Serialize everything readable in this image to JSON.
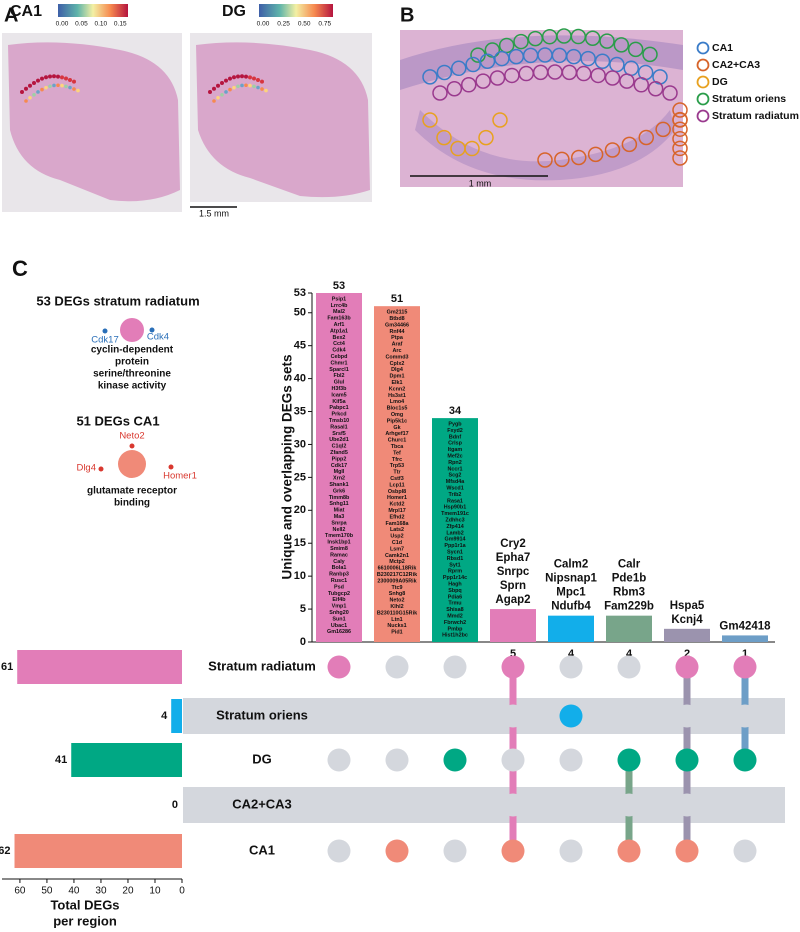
{
  "panel_a": {
    "label": "A",
    "scale_bar": "1.5 mm",
    "maps": [
      {
        "title": "CA1",
        "clim": [
          0,
          0.17
        ],
        "cticks": [
          {
            "value": 0,
            "label": "0.00"
          },
          {
            "value": 0.05,
            "label": "0.05"
          },
          {
            "value": 0.1,
            "label": "0.10"
          },
          {
            "value": 0.15,
            "label": "0.15"
          }
        ]
      },
      {
        "title": "DG",
        "clim": [
          0,
          0.85
        ],
        "cticks": [
          {
            "value": 0,
            "label": "0.00"
          },
          {
            "value": 0.25,
            "label": "0.25"
          },
          {
            "value": 0.5,
            "label": "0.50"
          },
          {
            "value": 0.75,
            "label": "0.75"
          }
        ]
      }
    ]
  },
  "panel_b": {
    "label": "B",
    "scale_bar": "1 mm",
    "legend": [
      {
        "name": "CA1",
        "color": "#3a7cc8"
      },
      {
        "name": "CA2+CA3",
        "color": "#d7642a"
      },
      {
        "name": "DG",
        "color": "#e8a11f"
      },
      {
        "name": "Stratum oriens",
        "color": "#2a9d4a"
      },
      {
        "name": "Stratum radiatum",
        "color": "#9a3a8e"
      }
    ]
  },
  "chart_data": {
    "type": "upset",
    "panel_label": "C",
    "ylabel": "Unique and overlapping DEGs sets",
    "ylim": [
      0,
      53
    ],
    "yticks": [
      0,
      5,
      10,
      15,
      20,
      25,
      30,
      35,
      40,
      45,
      50,
      53
    ],
    "xlabel": [
      "Total DEGs",
      "per region"
    ],
    "xlim": [
      0,
      67
    ],
    "xticks": [
      60,
      50,
      40,
      30,
      20,
      10,
      0
    ],
    "regions": [
      {
        "name": "Stratum radiatum",
        "color": "#e27db8",
        "total": 61
      },
      {
        "name": "Stratum oriens",
        "color": "#12aeea",
        "total": 4
      },
      {
        "name": "DG",
        "color": "#00a884",
        "total": 41
      },
      {
        "name": "CA2+CA3",
        "color": "#999999",
        "total": 0
      },
      {
        "name": "CA1",
        "color": "#f08a78",
        "total": 62
      }
    ],
    "sets": [
      {
        "members": [
          0
        ],
        "value": 53,
        "color": "#e27db8",
        "genes": [
          "Psip1",
          "Lrrc4b",
          "Mal2",
          "Fam163b",
          "Arf1",
          "Atp1a1",
          "Bex2",
          "Cct4",
          "Cdk4",
          "Cebpd",
          "Chmr1",
          "Sparcl1",
          "Fbl2",
          "Glul",
          "H3f3b",
          "Icam5",
          "Kif5a",
          "Pabpc1",
          "Prkcd",
          "Tmsb10",
          "Rasal1",
          "Srsf5",
          "Ube2d1",
          "C1ql2",
          "Zfand5",
          "Pipp2",
          "Cdk17",
          "Mgll",
          "Xrn2",
          "Shank1",
          "Grk6",
          "Timm8b",
          "Snhg11",
          "Miat",
          "Ma3",
          "Snrpa",
          "Nell2",
          "Tmem170b",
          "Insk1bp1",
          "Smim8",
          "Ramac",
          "Caly",
          "Bola1",
          "Ranbp3",
          "Rusc1",
          "Psd",
          "Tubgcp2",
          "Eif4b",
          "Vmp1",
          "Snhg20",
          "Sun1",
          "Ubac1",
          "Gm16286"
        ]
      },
      {
        "members": [
          4
        ],
        "value": 51,
        "color": "#f08a78",
        "genes": [
          "Gm2115",
          "Btbd8",
          "Gm34466",
          "Rnf44",
          "Ptpa",
          "Araf",
          "Arc",
          "Commd3",
          "Cplx2",
          "Dlg4",
          "Dpm1",
          "Elk1",
          "Kcnn2",
          "Hs3st1",
          "Lmo4",
          "Bloc1s5",
          "Omg",
          "Pip5k1c",
          "Gk",
          "Arhgef17",
          "Churc1",
          "Tbca",
          "Tef",
          "Tfrc",
          "Trp53",
          "Ttr",
          "Cstf3",
          "Lcp11",
          "Osbpl8",
          "Homer1",
          "Kctd2",
          "Mrpl17",
          "Efhd2",
          "Fam168a",
          "Lats2",
          "Usp2",
          "C1d",
          "Lsm7",
          "Camk2n1",
          "Mctp2",
          "6610006L18Rik",
          "B230217C12Rik",
          "2300009A05Rik",
          "Ttc9",
          "Snhg8",
          "Neto2",
          "Klhl2",
          "B230110G15Rik",
          "Ltn1",
          "Nucks1",
          "Pid1"
        ]
      },
      {
        "members": [
          2
        ],
        "value": 34,
        "color": "#00a884",
        "genes": [
          "Pygb",
          "Fxyd2",
          "Bdnf",
          "Crlsp",
          "Itgam",
          "Mef2c",
          "Rpn2",
          "Nccr1",
          "Scg2",
          "Mfsd4a",
          "Wscd1",
          "Trib2",
          "Rasa1",
          "Hsp90b1",
          "Tmem191c",
          "Zdhhc3",
          "Zfp414",
          "Lamb2",
          "Gm9914",
          "Ppp1r1a",
          "Sycn1",
          "Rbsd1",
          "Syt1",
          "Rprm",
          "Ppp1r14c",
          "Hagh",
          "Sbpq",
          "Pdia6",
          "Trmu",
          "Shisa8",
          "Mmd2",
          "Fbrwch2",
          "Pmbp",
          "Hist1h2bc"
        ]
      },
      {
        "members": [
          0,
          4
        ],
        "value": 5,
        "color": "#e27db8",
        "genes": [
          "Cry2",
          "Epha7",
          "Snrpc",
          "Sprn",
          "Agap2"
        ]
      },
      {
        "members": [
          1
        ],
        "value": 4,
        "color": "#12aeea",
        "genes": [
          "Calm2",
          "Nipsnap1",
          "Mpc1",
          "Ndufb4"
        ]
      },
      {
        "members": [
          2,
          4
        ],
        "value": 4,
        "color": "#78a58a",
        "genes": [
          "Calr",
          "Pde1b",
          "Rbm3",
          "Fam229b"
        ]
      },
      {
        "members": [
          0,
          2,
          4
        ],
        "value": 2,
        "color": "#9b93ae",
        "genes": [
          "Hspa5",
          "Kcnj4"
        ]
      },
      {
        "members": [
          0,
          2
        ],
        "value": 1,
        "color": "#6d9ec7",
        "genes": [
          "Gm42418"
        ]
      }
    ],
    "go_terms": [
      {
        "title": "53 DEGs stratum radiatum",
        "color": "#e27db8",
        "term": [
          "cyclin-dependent",
          "protein",
          "serine/threonine",
          "kinase activity"
        ],
        "genes": [
          {
            "name": "Cdk17",
            "color": "#2a6fb8"
          },
          {
            "name": "Cdk4",
            "color": "#2a6fb8"
          }
        ]
      },
      {
        "title": "51 DEGs CA1",
        "color": "#f08a78",
        "term": [
          "glutamate receptor",
          "binding"
        ],
        "genes": [
          {
            "name": "Neto2",
            "color": "#d9382f"
          },
          {
            "name": "Dlg4",
            "color": "#d9382f"
          },
          {
            "name": "Homer1",
            "color": "#d9382f"
          }
        ]
      }
    ]
  }
}
